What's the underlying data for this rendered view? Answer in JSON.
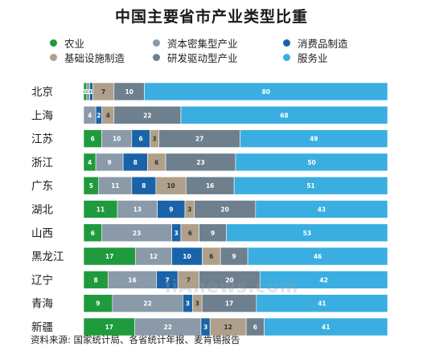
{
  "title": "中国主要省市产业类型比重",
  "source": "资料来源: 国家统计局、各省统计年报、麦肯锡报告",
  "watermark": "iiAnews.com",
  "colors": {
    "农业": "#1f9a3c",
    "资本密集型产业": "#8a9aa8",
    "消费品制造": "#1a63a8",
    "基础设施制造": "#b0a08a",
    "研发驱动型产业": "#6e7f8e",
    "服务业": "#3aaee0"
  },
  "legend": [
    {
      "label": "农业",
      "color": "#1f9a3c"
    },
    {
      "label": "资本密集型产业",
      "color": "#8a9aa8"
    },
    {
      "label": "消费品制造",
      "color": "#1a63a8"
    },
    {
      "label": "基础设施制造",
      "color": "#b0a08a"
    },
    {
      "label": "研发驱动型产业",
      "color": "#6e7f8e"
    },
    {
      "label": "服务业",
      "color": "#3aaee0"
    }
  ],
  "chart_data": {
    "type": "bar",
    "stacked": true,
    "orientation": "horizontal",
    "title": "中国主要省市产业类型比重",
    "categories": [
      "北京",
      "上海",
      "江苏",
      "浙江",
      "广东",
      "湖北",
      "山西",
      "黑龙江",
      "辽宁",
      "青海",
      "新疆"
    ],
    "series": [
      {
        "name": "农业",
        "values": [
          1,
          0,
          6,
          4,
          5,
          11,
          6,
          17,
          8,
          9,
          17
        ]
      },
      {
        "name": "资本密集型产业",
        "values": [
          1,
          4,
          10,
          9,
          11,
          13,
          23,
          12,
          16,
          22,
          22
        ]
      },
      {
        "name": "消费品制造",
        "values": [
          1,
          2,
          6,
          8,
          8,
          9,
          3,
          10,
          7,
          3,
          3
        ]
      },
      {
        "name": "基础设施制造",
        "values": [
          7,
          4,
          3,
          6,
          10,
          3,
          6,
          6,
          7,
          3,
          12
        ]
      },
      {
        "name": "研发驱动型产业",
        "values": [
          10,
          22,
          27,
          23,
          16,
          20,
          9,
          9,
          20,
          17,
          6
        ]
      },
      {
        "name": "服务业",
        "values": [
          80,
          68,
          49,
          50,
          51,
          43,
          53,
          46,
          42,
          41,
          41
        ]
      }
    ],
    "legend_position": "top",
    "grid": false
  }
}
